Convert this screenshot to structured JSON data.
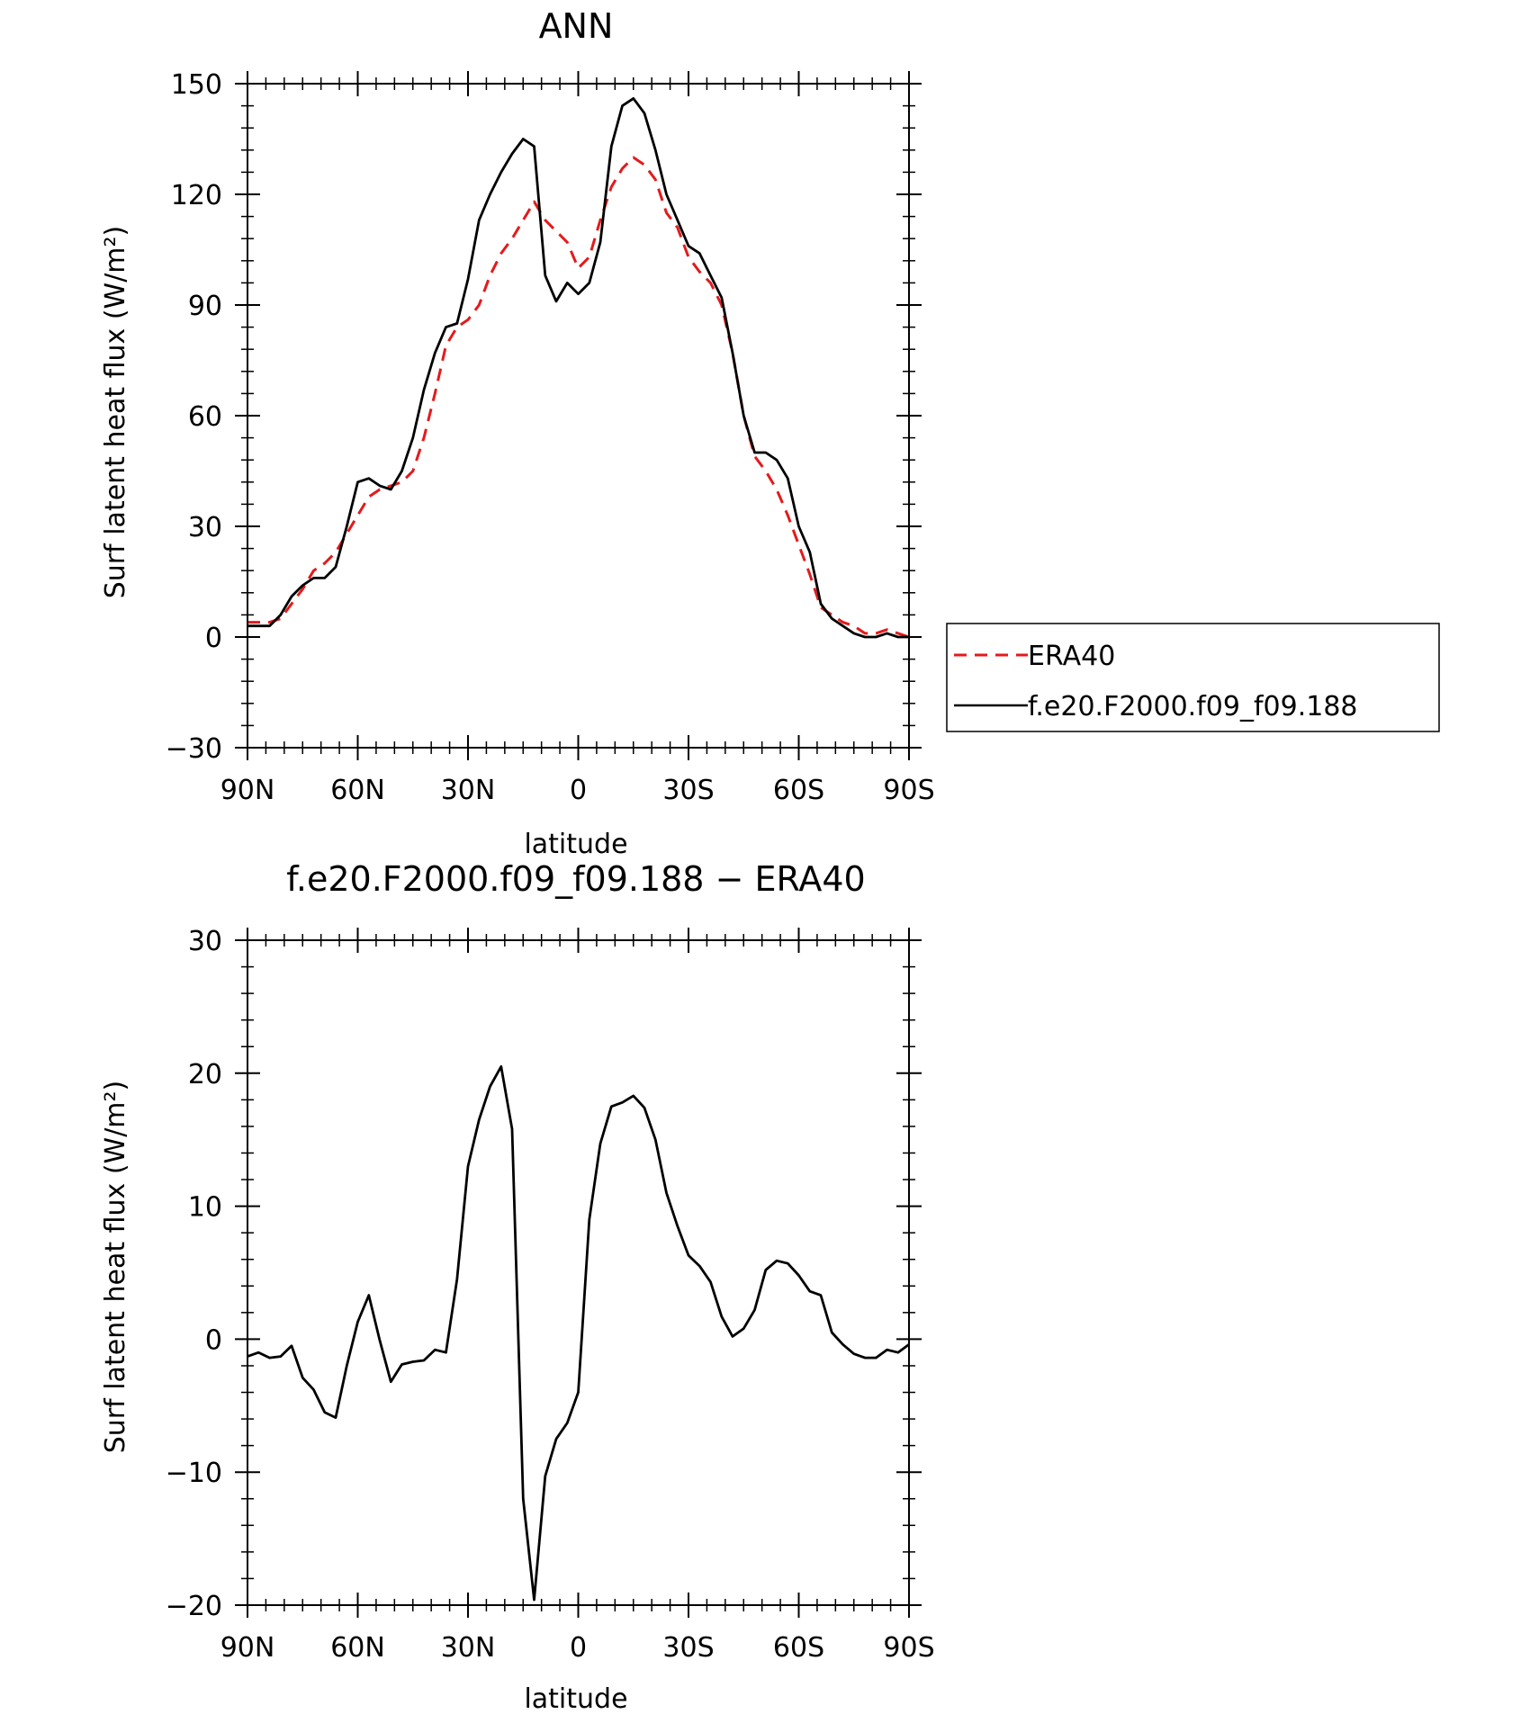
{
  "colors": {
    "era40": "#e41a1c",
    "model": "#000000",
    "axis": "#000000",
    "background": "#ffffff"
  },
  "x_ticks": [
    {
      "value": -90,
      "label": "90N"
    },
    {
      "value": -60,
      "label": "60N"
    },
    {
      "value": -30,
      "label": "30N"
    },
    {
      "value": 0,
      "label": "0"
    },
    {
      "value": 30,
      "label": "30S"
    },
    {
      "value": 60,
      "label": "60S"
    },
    {
      "value": 90,
      "label": "90S"
    }
  ],
  "chart_data": [
    {
      "type": "line",
      "title": "ANN",
      "xlabel": "latitude",
      "ylabel": "Surf latent heat flux (W/m²)",
      "xlim": [
        -90,
        90
      ],
      "ylim": [
        -30,
        150
      ],
      "yticks": [
        -30,
        0,
        30,
        60,
        90,
        120,
        150
      ],
      "ytick_labels": [
        "−30",
        "0",
        "30",
        "60",
        "90",
        "120",
        "150"
      ],
      "grid": false,
      "legend": {
        "placement": "right-outside",
        "entries": [
          "ERA40",
          "f.e20.F2000.f09_f09.188"
        ]
      },
      "series": [
        {
          "name": "ERA40",
          "style": "dashed",
          "x": [
            -90,
            -87,
            -84,
            -81,
            -78,
            -75,
            -72,
            -69,
            -66,
            -63,
            -60,
            -57,
            -54,
            -51,
            -48,
            -45,
            -42,
            -39,
            -36,
            -33,
            -30,
            -27,
            -24,
            -21,
            -18,
            -15,
            -12,
            -9,
            -6,
            -3,
            0,
            3,
            6,
            9,
            12,
            15,
            18,
            21,
            24,
            27,
            30,
            33,
            36,
            39,
            42,
            45,
            48,
            51,
            54,
            57,
            60,
            63,
            66,
            69,
            72,
            75,
            78,
            81,
            84,
            87,
            90
          ],
          "y": [
            4,
            4,
            4,
            5,
            9,
            13,
            18,
            20,
            23,
            28,
            33,
            38,
            40,
            41,
            42,
            45,
            54,
            66,
            79,
            84,
            86,
            90,
            98,
            104,
            108,
            113,
            118,
            113,
            110,
            107,
            100,
            103,
            113,
            122,
            127,
            130,
            128,
            124,
            115,
            111,
            103,
            99,
            96,
            90,
            77,
            60,
            49,
            45,
            40,
            33,
            25,
            17,
            8,
            6,
            4,
            3,
            1,
            1,
            2,
            1,
            0
          ]
        },
        {
          "name": "f.e20.F2000.f09_f09.188",
          "style": "solid",
          "x": [
            -90,
            -87,
            -84,
            -81,
            -78,
            -75,
            -72,
            -69,
            -66,
            -63,
            -60,
            -57,
            -54,
            -51,
            -48,
            -45,
            -42,
            -39,
            -36,
            -33,
            -30,
            -27,
            -24,
            -21,
            -18,
            -15,
            -12,
            -9,
            -6,
            -3,
            0,
            3,
            6,
            9,
            12,
            15,
            18,
            21,
            24,
            27,
            30,
            33,
            36,
            39,
            42,
            45,
            48,
            51,
            54,
            57,
            60,
            63,
            66,
            69,
            72,
            75,
            78,
            81,
            84,
            87,
            90
          ],
          "y": [
            3,
            3,
            3,
            6,
            11,
            14,
            16,
            16,
            19,
            30,
            42,
            43,
            41,
            40,
            45,
            54,
            67,
            77,
            84,
            85,
            97,
            113,
            120,
            126,
            131,
            135,
            133,
            98,
            91,
            96,
            93,
            96,
            107,
            133,
            144,
            146,
            142,
            132,
            120,
            113,
            106,
            104,
            98,
            92,
            77,
            60,
            50,
            50,
            48,
            43,
            30,
            23,
            9,
            5,
            3,
            1,
            0,
            0,
            1,
            0,
            0
          ]
        }
      ]
    },
    {
      "type": "line",
      "title": "f.e20.F2000.f09_f09.188 − ERA40",
      "xlabel": "latitude",
      "ylabel": "Surf latent heat flux (W/m²)",
      "xlim": [
        -90,
        90
      ],
      "ylim": [
        -20,
        30
      ],
      "yticks": [
        -20,
        -10,
        0,
        10,
        20,
        30
      ],
      "ytick_labels": [
        "−20",
        "−10",
        "0",
        "10",
        "20",
        "30"
      ],
      "grid": false,
      "series": [
        {
          "style": "solid",
          "x": [
            -90,
            -87,
            -84,
            -81,
            -78,
            -75,
            -72,
            -69,
            -66,
            -63,
            -60,
            -57,
            -54,
            -51,
            -48,
            -45,
            -42,
            -39,
            -36,
            -33,
            -30,
            -27,
            -24,
            -21,
            -18,
            -15,
            -12,
            -9,
            -6,
            -3,
            0,
            3,
            6,
            9,
            12,
            15,
            18,
            21,
            24,
            27,
            30,
            33,
            36,
            39,
            42,
            45,
            48,
            51,
            54,
            57,
            60,
            63,
            66,
            69,
            72,
            75,
            78,
            81,
            84,
            87,
            90
          ],
          "y": [
            -1.3,
            -1.0,
            -1.4,
            -1.3,
            -0.5,
            -2.9,
            -3.8,
            -5.5,
            -5.9,
            -2.0,
            1.3,
            3.3,
            -0.1,
            -3.2,
            -1.9,
            -1.7,
            -1.6,
            -0.8,
            -1.0,
            4.5,
            13.0,
            16.5,
            19.0,
            20.5,
            15.8,
            -12.0,
            -19.6,
            -10.3,
            -7.5,
            -6.3,
            -4.0,
            9.0,
            14.7,
            17.5,
            17.8,
            18.3,
            17.4,
            15.0,
            11.0,
            8.5,
            6.3,
            5.5,
            4.3,
            1.7,
            0.2,
            0.8,
            2.2,
            5.2,
            5.9,
            5.7,
            4.8,
            3.6,
            3.3,
            0.5,
            -0.4,
            -1.1,
            -1.4,
            -1.4,
            -0.8,
            -1.0,
            -0.4
          ]
        }
      ]
    }
  ]
}
